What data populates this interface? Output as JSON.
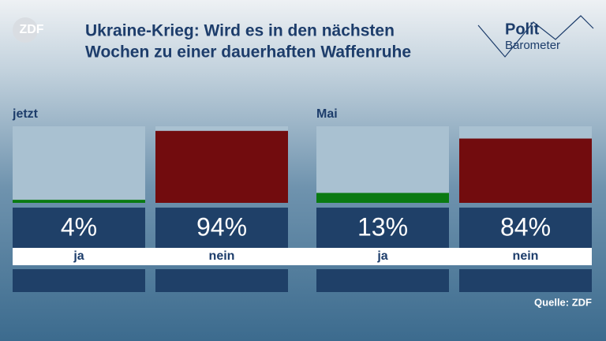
{
  "title_line1": "Ukraine-Krieg: Wird es in den nächsten",
  "title_line2": "Wochen zu einer dauerhaften Waffenruhe",
  "brand": "ZDF",
  "logo_top": "Polit",
  "logo_bottom": "Barometer",
  "source": "Quelle: ZDF",
  "chart_data": [
    {
      "type": "bar",
      "subtitle": "jetzt",
      "categories": [
        "ja",
        "nein"
      ],
      "values": [
        4,
        94
      ],
      "value_labels": [
        "4%",
        "94%"
      ],
      "colors": [
        "#0a7a12",
        "#720c0e"
      ],
      "ylim": [
        0,
        100
      ]
    },
    {
      "type": "bar",
      "subtitle": "Mai",
      "categories": [
        "ja",
        "nein"
      ],
      "values": [
        13,
        84
      ],
      "value_labels": [
        "13%",
        "84%"
      ],
      "colors": [
        "#0a7a12",
        "#720c0e"
      ],
      "ylim": [
        0,
        100
      ]
    }
  ]
}
